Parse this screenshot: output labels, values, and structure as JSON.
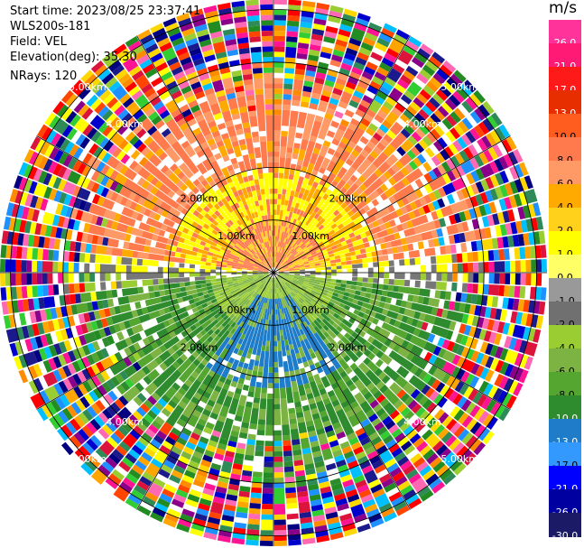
{
  "header": {
    "start_time": "Start time: 2023/08/25 23:37:41",
    "instrument": "WLS200s-181",
    "field": "Field: VEL",
    "elevation": "Elevation(deg): 35.30",
    "nrays": "NRays: 120"
  },
  "colorbar": {
    "unit": "m/s",
    "ticks": [
      "26.0",
      "21.0",
      "17.0",
      "13.0",
      "10.0",
      "8.0",
      "6.0",
      "4.0",
      "2.0",
      "1.0",
      "0.0",
      "-1.0",
      "-2.0",
      "-4.0",
      "-6.0",
      "-8.0",
      "-10.0",
      "-13.0",
      "-17.0",
      "-21.0",
      "-26.0",
      "-30.0"
    ],
    "colors": [
      "#ff3399",
      "#ff1a75",
      "#ff1a1a",
      "#e62e00",
      "#ff5c1f",
      "#ff7a4d",
      "#ff9966",
      "#ffaa00",
      "#ffd11a",
      "#ffff00",
      "#ffff66",
      "#999999",
      "#707070",
      "#9acd32",
      "#7cb342",
      "#55a630",
      "#2e8b2e",
      "#1e7cc8",
      "#3399ff",
      "#0000ff",
      "#0000a0",
      "#1a1a66"
    ]
  },
  "chart_data": {
    "type": "ppi",
    "field": "VEL",
    "units": "m/s",
    "nrays": 120,
    "elevation_deg": 35.3,
    "range_rings_km": [
      1.0,
      2.0,
      4.0,
      5.0
    ],
    "ring_labels": [
      "1.00km",
      "2.00km",
      "4.00km",
      "5.00km"
    ],
    "radial_lines_deg": [
      0,
      30,
      60,
      90,
      120,
      150,
      180,
      210,
      240,
      270,
      300,
      330
    ],
    "colorbar_ticks": [
      26.0,
      21.0,
      17.0,
      13.0,
      10.0,
      8.0,
      6.0,
      4.0,
      2.0,
      1.0,
      0.0,
      -1.0,
      -2.0,
      -4.0,
      -6.0,
      -8.0,
      -10.0,
      -13.0,
      -17.0,
      -21.0,
      -26.0,
      -30.0
    ],
    "velocity_pattern": {
      "north_half": "positive (orange / yellow, about 2 to 8 m/s)",
      "south_half": "negative (green / blue, about -2 to -10 m/s)",
      "outer_ranges": "noise (mixed colors)"
    }
  }
}
